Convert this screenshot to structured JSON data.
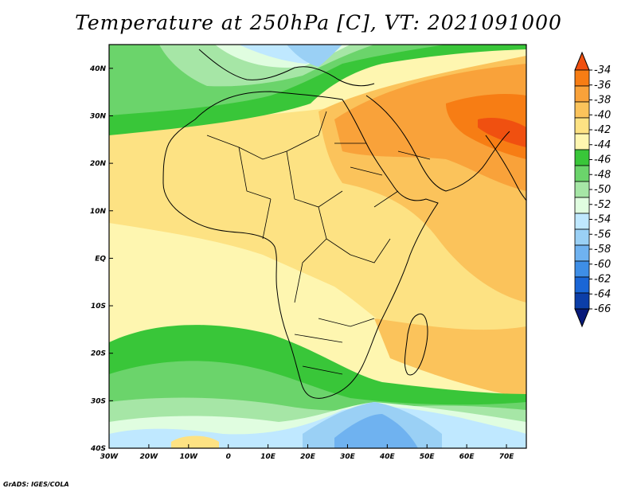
{
  "title": "Temperature at 250hPa [C], VT: 2021091000",
  "credit": "GrADS: IGES/COLA",
  "lat_labels": [
    "40N",
    "30N",
    "20N",
    "10N",
    "EQ",
    "10S",
    "20S",
    "30S",
    "40S"
  ],
  "lon_labels": [
    "30W",
    "20W",
    "10W",
    "0",
    "10E",
    "20E",
    "30E",
    "40E",
    "50E",
    "60E",
    "70E"
  ],
  "colorbar": {
    "labels": [
      "-34",
      "-36",
      "-38",
      "-40",
      "-42",
      "-44",
      "-46",
      "-48",
      "-50",
      "-52",
      "-54",
      "-56",
      "-58",
      "-60",
      "-62",
      "-64",
      "-66"
    ],
    "colors": [
      "#f05010",
      "#f77d14",
      "#f9a23a",
      "#fbc35b",
      "#fde283",
      "#fef6b0",
      "#39c639",
      "#6bd46b",
      "#a6e6a6",
      "#e0fde0",
      "#bfe8ff",
      "#9ad0f5",
      "#6fb2f0",
      "#3e8ee6",
      "#1a66d6",
      "#0c3ea8",
      "#081a7a"
    ]
  },
  "map": {
    "lat_range": [
      -40,
      45
    ],
    "lon_range": [
      -30,
      75
    ]
  }
}
